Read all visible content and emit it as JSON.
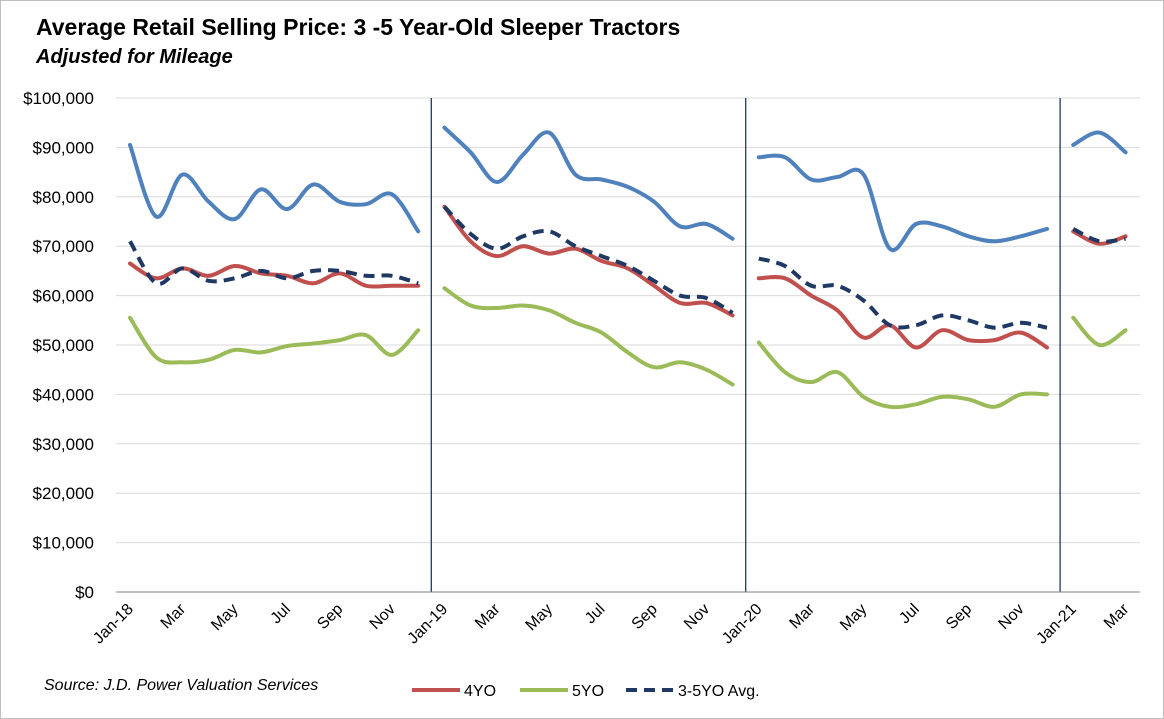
{
  "chart_data": {
    "type": "line",
    "title": "Average Retail Selling Price: 3 -5 Year-Old Sleeper Tractors",
    "subtitle": "Adjusted for Mileage",
    "source": "Source: J.D. Power Valuation Services",
    "ylim": [
      0,
      100000
    ],
    "yticks": [
      "$0",
      "$10,000",
      "$20,000",
      "$30,000",
      "$40,000",
      "$50,000",
      "$60,000",
      "$70,000",
      "$80,000",
      "$90,000",
      "$100,000"
    ],
    "x": [
      "Jan-18",
      "Feb-18",
      "Mar-18",
      "Apr-18",
      "May-18",
      "Jun-18",
      "Jul-18",
      "Aug-18",
      "Sep-18",
      "Oct-18",
      "Nov-18",
      "Dec-18",
      "Jan-19",
      "Feb-19",
      "Mar-19",
      "Apr-19",
      "May-19",
      "Jun-19",
      "Jul-19",
      "Aug-19",
      "Sep-19",
      "Oct-19",
      "Nov-19",
      "Dec-19",
      "Jan-20",
      "Feb-20",
      "Mar-20",
      "Apr-20",
      "May-20",
      "Jun-20",
      "Jul-20",
      "Aug-20",
      "Sep-20",
      "Oct-20",
      "Nov-20",
      "Dec-20",
      "Jan-21",
      "Feb-21",
      "Mar-21"
    ],
    "xtick_labels": [
      "Jan-18",
      "",
      "Mar",
      "",
      "May",
      "",
      "Jul",
      "",
      "Sep",
      "",
      "Nov",
      "",
      "Jan-19",
      "",
      "Mar",
      "",
      "May",
      "",
      "Jul",
      "",
      "Sep",
      "",
      "Nov",
      "",
      "Jan-20",
      "",
      "Mar",
      "",
      "May",
      "",
      "Jul",
      "",
      "Sep",
      "",
      "Nov",
      "",
      "Jan-21",
      "",
      "Mar"
    ],
    "year_dividers": [
      "Jan-19",
      "Jan-20",
      "Jan-21"
    ],
    "grid": "horizontal",
    "legend_position": "bottom",
    "series": [
      {
        "name": "4YO",
        "color": "#c0504d",
        "dash": "solid",
        "values": [
          66500,
          63500,
          65500,
          64000,
          66000,
          64500,
          64000,
          62500,
          64500,
          62000,
          62000,
          62000,
          78000,
          71000,
          68000,
          70000,
          68500,
          69500,
          67000,
          65500,
          62000,
          58500,
          58500,
          56000,
          63500,
          63500,
          60000,
          57000,
          51500,
          54000,
          49500,
          53000,
          51000,
          51000,
          52500,
          49500,
          73000,
          70500,
          72000
        ]
      },
      {
        "name": "5YO",
        "color": "#9bbb59",
        "dash": "solid",
        "values": [
          55500,
          47500,
          46500,
          47000,
          49000,
          48500,
          49800,
          50300,
          51000,
          52000,
          48000,
          53000,
          61500,
          58000,
          57500,
          58000,
          57000,
          54500,
          52500,
          48500,
          45500,
          46500,
          45000,
          42000,
          50500,
          44500,
          42500,
          44500,
          39500,
          37500,
          38000,
          39500,
          39000,
          37500,
          40000,
          40000,
          55500,
          50000,
          53000
        ]
      },
      {
        "name": "3-5YO Avg.",
        "color": "#1f3864",
        "dash": "dashed",
        "values": [
          71000,
          62500,
          65500,
          63000,
          63500,
          65000,
          63500,
          65000,
          65000,
          64000,
          64000,
          62500,
          78000,
          72500,
          69500,
          72000,
          73000,
          70000,
          68000,
          66000,
          63000,
          60000,
          59500,
          56500,
          67500,
          66000,
          62000,
          62000,
          59000,
          54000,
          54000,
          56000,
          55000,
          53500,
          54500,
          53500,
          73500,
          71000,
          71500
        ]
      },
      {
        "name": "",
        "color": "#4f81bd",
        "dash": "solid",
        "values": [
          90500,
          76000,
          84500,
          79000,
          75500,
          81500,
          77500,
          82500,
          79000,
          78500,
          80500,
          73000,
          94000,
          89000,
          83000,
          88500,
          93000,
          84500,
          83500,
          82000,
          79000,
          74000,
          74500,
          71500,
          88000,
          88000,
          83500,
          84000,
          84500,
          69500,
          74500,
          74000,
          72000,
          71000,
          72000,
          73500,
          90500,
          93000,
          89000
        ]
      }
    ]
  }
}
